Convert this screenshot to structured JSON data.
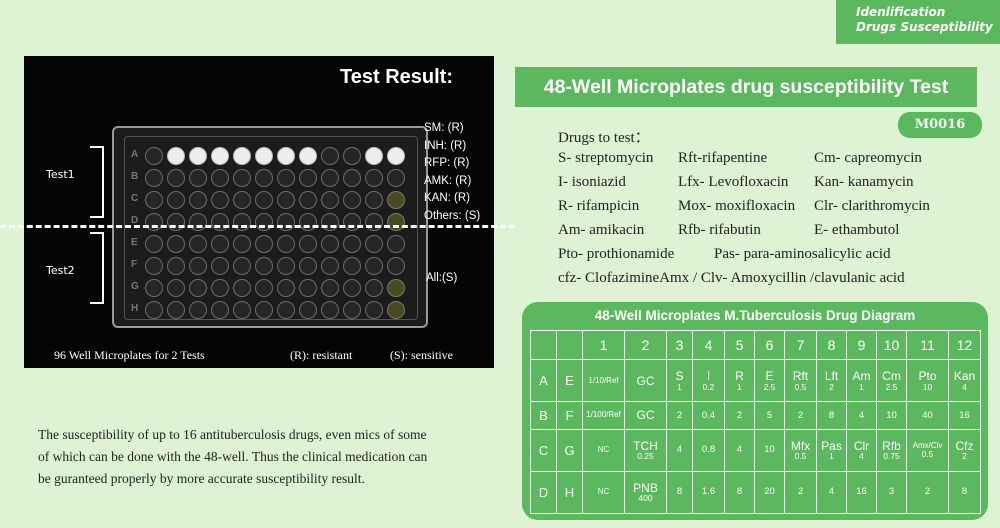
{
  "corner_tag": {
    "line1": "Idenlification",
    "line2": "Drugs Susceptibility"
  },
  "photo": {
    "title": "Test Result:",
    "test1_label": "Test1",
    "test2_label": "Test2",
    "results": [
      "SM: (R)",
      "INH: (R)",
      "RFP: (R)",
      "AMK: (R)",
      "KAN: (R)",
      "Others: (S)"
    ],
    "all_s": "All:(S)",
    "caption_left": "96 Well Microplates for 2 Tests",
    "caption_mid": "(R): resistant",
    "caption_right": "(S): sensitive",
    "row_letters": [
      "A",
      "B",
      "C",
      "D",
      "E",
      "F",
      "G",
      "H"
    ]
  },
  "header": {
    "title": "48-Well Microplates drug susceptibility Test",
    "code": "M0016"
  },
  "drugs": {
    "heading": "Drugs to test：",
    "rows": [
      [
        "S- streptomycin",
        "Rft-rifapentine",
        "Cm- capreomycin"
      ],
      [
        "I- isoniazid",
        "Lfx- Levofloxacin",
        "Kan- kanamycin"
      ],
      [
        "R- rifampicin",
        "Mox- moxifloxacin",
        "Clr- clarithromycin"
      ],
      [
        "Am- amikacin",
        "Rfb- rifabutin",
        "E- ethambutol"
      ],
      [
        "Pto- prothionamide",
        "Pas- para-aminosalicylic acid"
      ],
      [
        "cfz- ClofazimineAmx  / Clv- Amoxycillin /clavulanic acid"
      ]
    ]
  },
  "paragraph": {
    "lines": [
      "The susceptibility of up to 16 antituberculosis drugs, even mics of some",
      "of which can be done with the 48-well. Thus the clinical medication can",
      "be guranteed properly by more accurate susceptibility result."
    ]
  },
  "diagram": {
    "title": "48-Well Microplates M.Tuberculosis Drug Diagram",
    "columns": [
      "",
      "",
      "1",
      "2",
      "3",
      "4",
      "5",
      "6",
      "7",
      "8",
      "9",
      "10",
      "11",
      "12"
    ],
    "rows": [
      {
        "r1": "A",
        "r2": "E",
        "cells": [
          {
            "m": "1/10/Ref",
            "s": "",
            "small": true
          },
          {
            "m": "GC",
            "s": ""
          },
          {
            "m": "S",
            "s": "1"
          },
          {
            "m": "I",
            "s": "0.2"
          },
          {
            "m": "R",
            "s": "1"
          },
          {
            "m": "E",
            "s": "2.5"
          },
          {
            "m": "Rft",
            "s": "0.5"
          },
          {
            "m": "Lft",
            "s": "2"
          },
          {
            "m": "Am",
            "s": "1"
          },
          {
            "m": "Cm",
            "s": "2.5"
          },
          {
            "m": "Pto",
            "s": "10"
          },
          {
            "m": "Kan",
            "s": "4"
          }
        ]
      },
      {
        "r1": "B",
        "r2": "F",
        "cells": [
          {
            "m": "1/100/Ref",
            "s": "",
            "small": true
          },
          {
            "m": "GC",
            "s": ""
          },
          {
            "m": "",
            "s": "2"
          },
          {
            "m": "",
            "s": "0.4"
          },
          {
            "m": "",
            "s": "2"
          },
          {
            "m": "",
            "s": "5"
          },
          {
            "m": "",
            "s": "2"
          },
          {
            "m": "",
            "s": "8"
          },
          {
            "m": "",
            "s": "4"
          },
          {
            "m": "",
            "s": "10"
          },
          {
            "m": "",
            "s": "40"
          },
          {
            "m": "",
            "s": "16"
          }
        ]
      },
      {
        "r1": "C",
        "r2": "G",
        "cells": [
          {
            "m": "NC",
            "s": "",
            "small": true
          },
          {
            "m": "TCH",
            "s": "0.25"
          },
          {
            "m": "",
            "s": "4"
          },
          {
            "m": "",
            "s": "0.8"
          },
          {
            "m": "",
            "s": "4"
          },
          {
            "m": "",
            "s": "10"
          },
          {
            "m": "Mfx",
            "s": "0.5"
          },
          {
            "m": "Pas",
            "s": "1"
          },
          {
            "m": "Clr",
            "s": "4"
          },
          {
            "m": "Rfb",
            "s": "0.75"
          },
          {
            "m": "Amx/Clv",
            "s": "0.5",
            "small": true
          },
          {
            "m": "Cfz",
            "s": "2"
          }
        ]
      },
      {
        "r1": "D",
        "r2": "H",
        "cells": [
          {
            "m": "NC",
            "s": "",
            "small": true
          },
          {
            "m": "PNB",
            "s": "400"
          },
          {
            "m": "",
            "s": "8"
          },
          {
            "m": "",
            "s": "1.6"
          },
          {
            "m": "",
            "s": "8"
          },
          {
            "m": "",
            "s": "20"
          },
          {
            "m": "",
            "s": "2"
          },
          {
            "m": "",
            "s": "4"
          },
          {
            "m": "",
            "s": "16"
          },
          {
            "m": "",
            "s": "3"
          },
          {
            "m": "",
            "s": "2"
          },
          {
            "m": "",
            "s": "8"
          }
        ]
      }
    ]
  }
}
